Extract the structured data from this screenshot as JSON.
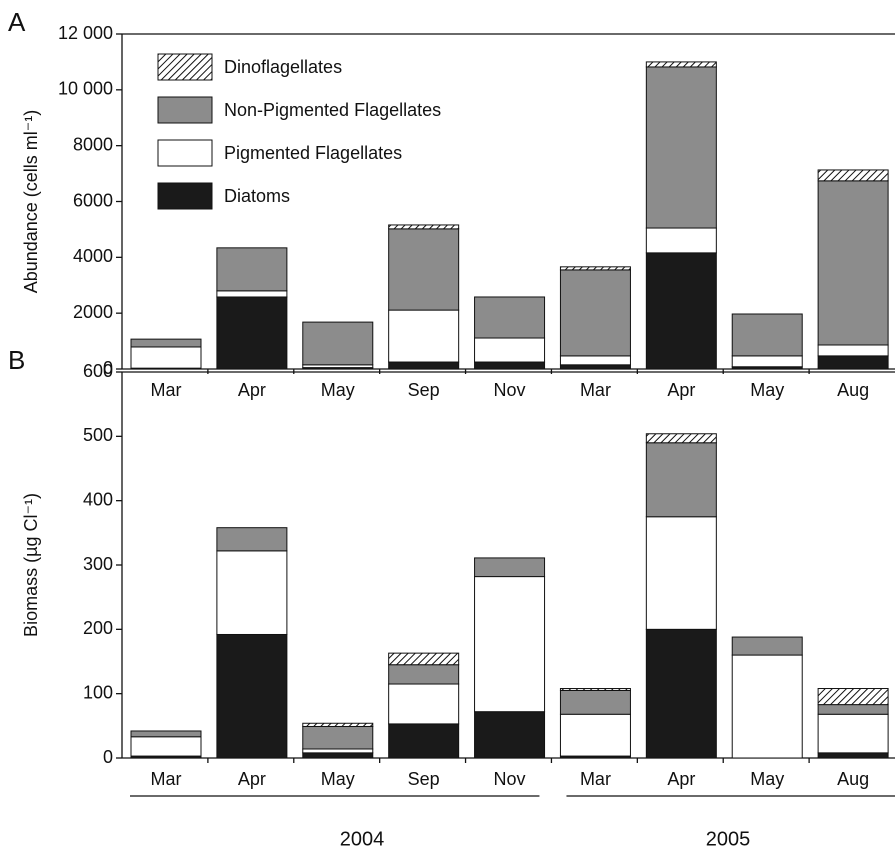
{
  "chart_data": [
    {
      "type": "stacked-bar",
      "panel": "A",
      "y_label": "Abundance (cells ml⁻¹)",
      "categories": [
        "Mar",
        "Apr",
        "May",
        "Sep",
        "Nov",
        "Mar",
        "Apr",
        "May",
        "Aug"
      ],
      "series": [
        {
          "name": "Diatoms",
          "color": "#1a1a1a",
          "values": [
            30,
            2580,
            50,
            250,
            250,
            150,
            4160,
            80,
            470
          ]
        },
        {
          "name": "Pigmented Flagellates",
          "color": "#ffffff",
          "values": [
            760,
            220,
            100,
            1860,
            860,
            320,
            890,
            390,
            390
          ]
        },
        {
          "name": "Non-Pigmented Flagellates",
          "color": "#8c8c8c",
          "values": [
            280,
            1540,
            1530,
            2910,
            1470,
            3080,
            5770,
            1500,
            5880
          ]
        },
        {
          "name": "Dinoflagellates",
          "color": "#ffffff",
          "pattern": "diagonal-hatch",
          "values": [
            0,
            0,
            0,
            140,
            0,
            110,
            180,
            0,
            390
          ]
        }
      ],
      "ylim": [
        0,
        12000
      ],
      "yticks": [
        0,
        2000,
        4000,
        6000,
        8000,
        {
          "value": 10000,
          "label": "10 000"
        },
        {
          "value": 12000,
          "label": "12 000"
        }
      ],
      "legend": "top-left"
    },
    {
      "type": "stacked-bar",
      "panel": "B",
      "y_label": "Biomass (µg Cl⁻¹)",
      "categories": [
        "Mar",
        "Apr",
        "May",
        "Sep",
        "Nov",
        "Mar",
        "Apr",
        "May",
        "Aug"
      ],
      "series": [
        {
          "name": "Diatoms",
          "color": "#1a1a1a",
          "values": [
            3,
            192,
            8,
            53,
            72,
            3,
            200,
            0,
            8
          ]
        },
        {
          "name": "Pigmented Flagellates",
          "color": "#ffffff",
          "values": [
            30,
            130,
            6,
            62,
            210,
            65,
            175,
            160,
            60
          ]
        },
        {
          "name": "Non-Pigmented Flagellates",
          "color": "#8c8c8c",
          "values": [
            9,
            36,
            35,
            30,
            29,
            37,
            115,
            28,
            15
          ]
        },
        {
          "name": "Dinoflagellates",
          "color": "#ffffff",
          "pattern": "diagonal-hatch",
          "values": [
            0,
            0,
            5,
            18,
            0,
            3,
            14,
            0,
            25
          ]
        }
      ],
      "ylim": [
        0,
        600
      ],
      "yticks": [
        0,
        100,
        200,
        300,
        400,
        500,
        600
      ]
    }
  ],
  "year_labels": [
    "2004",
    "2005"
  ]
}
